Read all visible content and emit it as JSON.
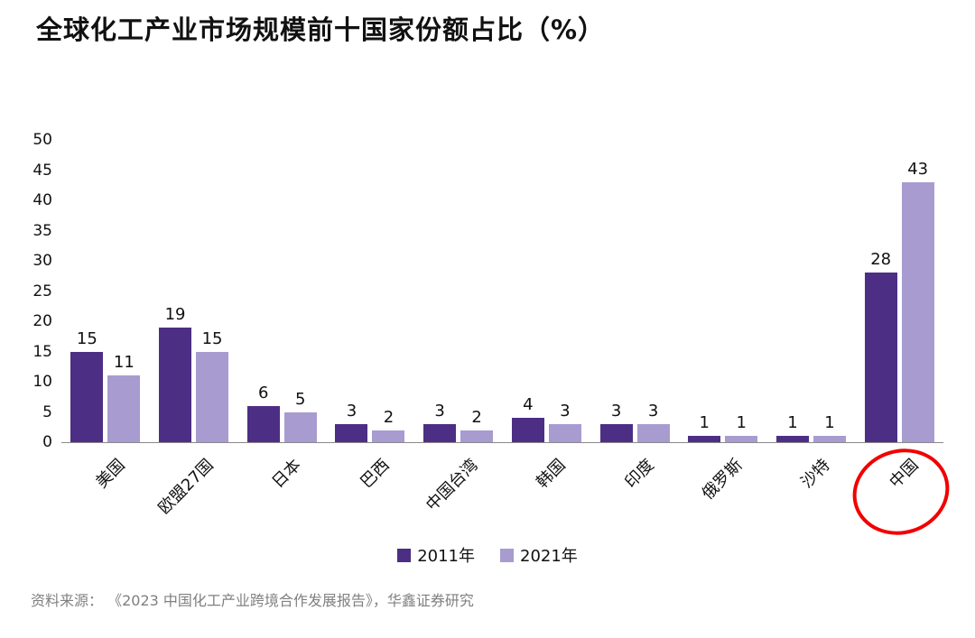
{
  "title": "全球化工产业市场规模前十国家份额占比（%）",
  "source": "资料来源： 《2023 中国化工产业跨境合作发展报告》，华鑫证券研究",
  "colors": {
    "series_2011": "#4d2e85",
    "series_2021": "#a89bd0",
    "highlight_circle": "#f20000",
    "axis_line": "#8a8a8a",
    "text": "#111111",
    "source_text": "#808080"
  },
  "chart_data": {
    "type": "bar",
    "title": "全球化工产业市场规模前十国家份额占比（%）",
    "categories": [
      "美国",
      "欧盟27国",
      "日本",
      "巴西",
      "中国台湾",
      "韩国",
      "印度",
      "俄罗斯",
      "沙特",
      "中国"
    ],
    "series": [
      {
        "name": "2011年",
        "color": "#4d2e85",
        "values": [
          15,
          19,
          6,
          3,
          3,
          4,
          3,
          1,
          1,
          28
        ]
      },
      {
        "name": "2021年",
        "color": "#a89bd0",
        "values": [
          11,
          15,
          5,
          2,
          2,
          3,
          3,
          1,
          1,
          43
        ]
      }
    ],
    "ylim": [
      0,
      50
    ],
    "ytick_step": 5,
    "grid": "off",
    "legend_position": "bottom",
    "highlighted_category": "中国",
    "xlabel": "",
    "ylabel": ""
  }
}
